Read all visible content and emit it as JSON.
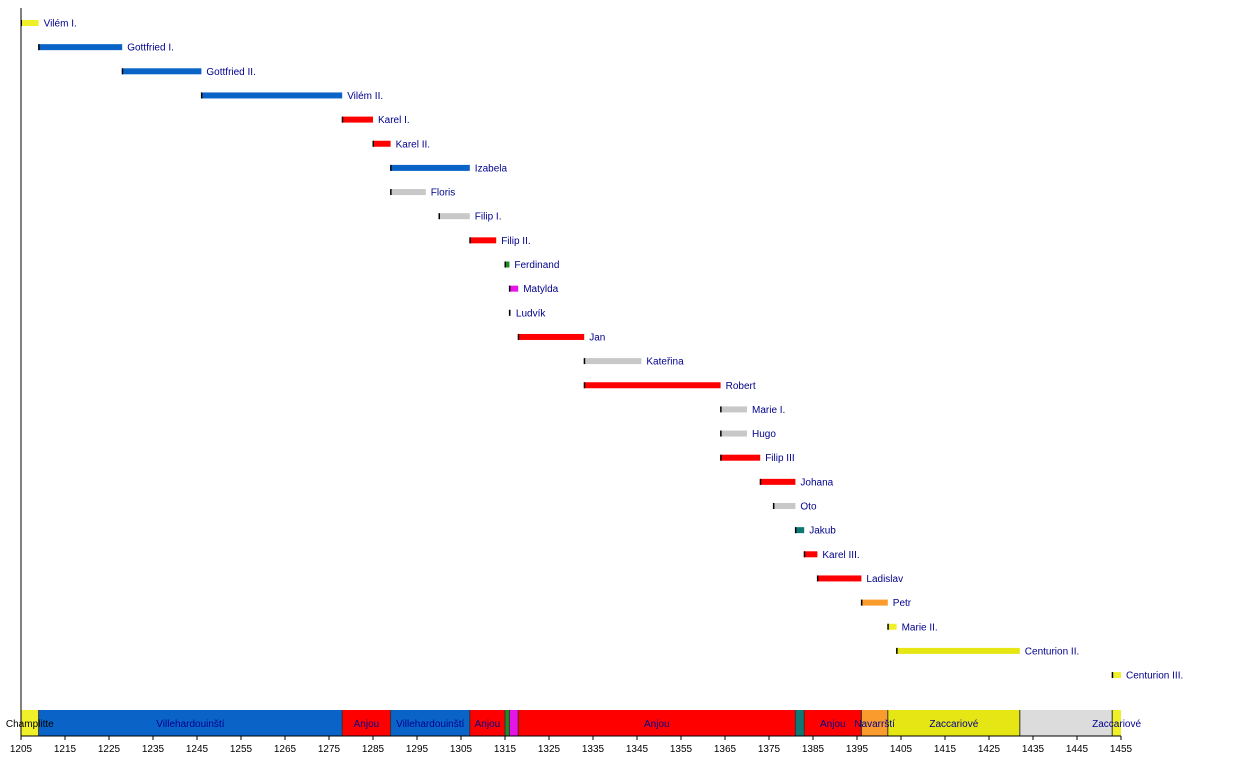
{
  "chart_data": {
    "type": "bar",
    "subtype": "timeline-gantt",
    "xlim": [
      1205,
      1455
    ],
    "x_ticks": [
      1205,
      1215,
      1225,
      1235,
      1245,
      1255,
      1265,
      1275,
      1285,
      1295,
      1305,
      1315,
      1325,
      1335,
      1345,
      1355,
      1365,
      1375,
      1385,
      1395,
      1405,
      1415,
      1425,
      1435,
      1445,
      1455
    ],
    "grid": false,
    "rulers": [
      {
        "name": "Vilém I.",
        "start": 1205,
        "end": 1209,
        "dynasty": "Champlitte",
        "color": "#f0f02a"
      },
      {
        "name": "Gottfried I.",
        "start": 1209,
        "end": 1228,
        "dynasty": "Villehardouinští",
        "color": "#0a64c8"
      },
      {
        "name": "Gottfried II.",
        "start": 1228,
        "end": 1246,
        "dynasty": "Villehardouinští",
        "color": "#0a64c8"
      },
      {
        "name": "Vilém II.",
        "start": 1246,
        "end": 1278,
        "dynasty": "Villehardouinští",
        "color": "#0a64c8"
      },
      {
        "name": "Karel I.",
        "start": 1278,
        "end": 1285,
        "dynasty": "Anjou",
        "color": "#ff0000"
      },
      {
        "name": "Karel II.",
        "start": 1285,
        "end": 1289,
        "dynasty": "Anjou",
        "color": "#ff0000"
      },
      {
        "name": "Izabela",
        "start": 1289,
        "end": 1307,
        "dynasty": "Villehardouinští",
        "color": "#0a64c8"
      },
      {
        "name": "Floris",
        "start": 1289,
        "end": 1297,
        "dynasty": "",
        "color": "#c8c8c8"
      },
      {
        "name": "Filip I.",
        "start": 1300,
        "end": 1307,
        "dynasty": "",
        "color": "#c8c8c8"
      },
      {
        "name": "Filip II.",
        "start": 1307,
        "end": 1313,
        "dynasty": "Anjou",
        "color": "#ff0000"
      },
      {
        "name": "Ferdinand",
        "start": 1315,
        "end": 1316,
        "dynasty": "",
        "color": "#1e8c1e"
      },
      {
        "name": "Matylda",
        "start": 1316,
        "end": 1318,
        "dynasty": "",
        "color": "#e614e6"
      },
      {
        "name": "Ludvík",
        "start": 1316,
        "end": 1316.3,
        "dynasty": "",
        "color": "#c8c8c8"
      },
      {
        "name": "Jan",
        "start": 1318,
        "end": 1333,
        "dynasty": "Anjou",
        "color": "#ff0000"
      },
      {
        "name": "Kateřina",
        "start": 1333,
        "end": 1346,
        "dynasty": "",
        "color": "#c8c8c8"
      },
      {
        "name": "Robert",
        "start": 1333,
        "end": 1364,
        "dynasty": "Anjou",
        "color": "#ff0000"
      },
      {
        "name": "Marie I.",
        "start": 1364,
        "end": 1370,
        "dynasty": "",
        "color": "#c8c8c8"
      },
      {
        "name": "Hugo",
        "start": 1364,
        "end": 1370,
        "dynasty": "",
        "color": "#c8c8c8"
      },
      {
        "name": "Filip III",
        "start": 1364,
        "end": 1373,
        "dynasty": "Anjou",
        "color": "#ff0000"
      },
      {
        "name": "Johana",
        "start": 1373,
        "end": 1381,
        "dynasty": "Anjou",
        "color": "#ff0000"
      },
      {
        "name": "Oto",
        "start": 1376,
        "end": 1381,
        "dynasty": "",
        "color": "#c8c8c8"
      },
      {
        "name": "Jakub",
        "start": 1381,
        "end": 1383,
        "dynasty": "",
        "color": "#0f7873"
      },
      {
        "name": "Karel III.",
        "start": 1383,
        "end": 1386,
        "dynasty": "Anjou",
        "color": "#ff0000"
      },
      {
        "name": "Ladislav",
        "start": 1386,
        "end": 1396,
        "dynasty": "Anjou",
        "color": "#ff0000"
      },
      {
        "name": "Petr",
        "start": 1396,
        "end": 1402,
        "dynasty": "Navarrští",
        "color": "#fa9b2d"
      },
      {
        "name": "Marie II.",
        "start": 1402,
        "end": 1404,
        "dynasty": "Zaccariové",
        "color": "#f0f02a"
      },
      {
        "name": "Centurion II.",
        "start": 1404,
        "end": 1432,
        "dynasty": "Zaccariové",
        "color": "#e6e614"
      },
      {
        "name": "Centurion III.",
        "start": 1453,
        "end": 1455,
        "dynasty": "Zaccariové",
        "color": "#f0f02a"
      }
    ],
    "dynasty_band": [
      {
        "label": "Champlitte",
        "start": 1205,
        "end": 1209,
        "color": "#f0f02a",
        "text_color": "#000000"
      },
      {
        "label": "Villehardouinští",
        "start": 1209,
        "end": 1278,
        "color": "#0a64c8",
        "text_color": "#00008c"
      },
      {
        "label": "Anjou",
        "start": 1278,
        "end": 1289,
        "color": "#ff0000",
        "text_color": "#00008c"
      },
      {
        "label": "Villehardouinští",
        "start": 1289,
        "end": 1307,
        "color": "#0a64c8",
        "text_color": "#00008c"
      },
      {
        "label": "Anjou",
        "start": 1307,
        "end": 1315,
        "color": "#ff0000",
        "text_color": "#00008c"
      },
      {
        "label": "",
        "start": 1315,
        "end": 1316,
        "color": "#1e8c1e",
        "text_color": "#00008c"
      },
      {
        "label": "",
        "start": 1316,
        "end": 1318,
        "color": "#e614e6",
        "text_color": "#00008c"
      },
      {
        "label": "Anjou",
        "start": 1318,
        "end": 1381,
        "color": "#ff0000",
        "text_color": "#00008c"
      },
      {
        "label": "",
        "start": 1381,
        "end": 1383,
        "color": "#0f7873",
        "text_color": "#00008c"
      },
      {
        "label": "Anjou",
        "start": 1383,
        "end": 1396,
        "color": "#ff0000",
        "text_color": "#00008c"
      },
      {
        "label": "Navarrští",
        "start": 1396,
        "end": 1402,
        "color": "#fa9b2d",
        "text_color": "#00008c"
      },
      {
        "label": "Zaccariové",
        "start": 1402,
        "end": 1432,
        "color": "#e6e614",
        "text_color": "#00008c"
      },
      {
        "label": "",
        "start": 1432,
        "end": 1453,
        "color": "#dcdcdc",
        "text_color": "#00008c"
      },
      {
        "label": "Zaccariové",
        "start": 1453,
        "end": 1455,
        "color": "#f0f02a",
        "text_color": "#00008c"
      }
    ],
    "label_color": "#00008c"
  }
}
